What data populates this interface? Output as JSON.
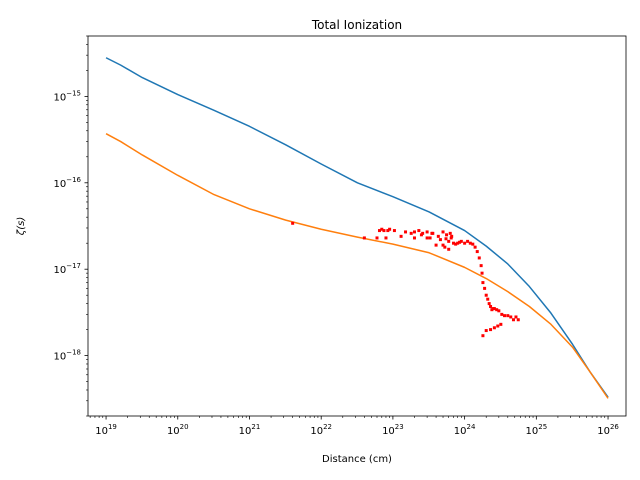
{
  "chart_data": {
    "type": "line",
    "title": "Total Ionization",
    "xlabel": "Distance (cm)",
    "ylabel": "ζ(s)",
    "xscale": "log",
    "yscale": "log",
    "xlim": [
      5.6e+18,
      1.78e+26
    ],
    "ylim": [
      2e-19,
      5e-15
    ],
    "grid": false,
    "legend": "none",
    "xticks": [
      {
        "value": 1e+19,
        "base": "10",
        "exp": "19"
      },
      {
        "value": 1e+20,
        "base": "10",
        "exp": "20"
      },
      {
        "value": 1e+21,
        "base": "10",
        "exp": "21"
      },
      {
        "value": 1e+22,
        "base": "10",
        "exp": "22"
      },
      {
        "value": 1e+23,
        "base": "10",
        "exp": "23"
      },
      {
        "value": 1e+24,
        "base": "10",
        "exp": "24"
      },
      {
        "value": 1e+25,
        "base": "10",
        "exp": "25"
      },
      {
        "value": 1e+26,
        "base": "10",
        "exp": "26"
      }
    ],
    "yticks": [
      {
        "value": 1e-18,
        "base": "10",
        "exp": "−18"
      },
      {
        "value": 1e-17,
        "base": "10",
        "exp": "−17"
      },
      {
        "value": 1e-16,
        "base": "10",
        "exp": "−16"
      },
      {
        "value": 1e-15,
        "base": "10",
        "exp": "−15"
      }
    ],
    "series": [
      {
        "kind": "line",
        "color": "#1f77b4",
        "x": [
          1e+19,
          1.6e+19,
          3.2e+19,
          1e+20,
          3.2e+20,
          1e+21,
          3.2e+21,
          1e+22,
          3.2e+22,
          1e+23,
          3.2e+23,
          1e+24,
          2e+24,
          4e+24,
          8e+24,
          1.6e+25,
          3.2e+25,
          5.6e+25,
          1e+26
        ],
        "y": [
          2.8e-15,
          2.3e-15,
          1.65e-15,
          1.05e-15,
          6.9e-16,
          4.5e-16,
          2.75e-16,
          1.65e-16,
          1e-16,
          6.9e-17,
          4.6e-17,
          2.8e-17,
          1.85e-17,
          1.15e-17,
          6.3e-18,
          3.1e-18,
          1.35e-18,
          6.5e-19,
          3.3e-19
        ]
      },
      {
        "kind": "line",
        "color": "#ff7f0e",
        "x": [
          1e+19,
          1.6e+19,
          3.2e+19,
          1e+20,
          3.2e+20,
          1e+21,
          3.2e+21,
          1e+22,
          3.2e+22,
          1e+23,
          3.2e+23,
          1e+24,
          2e+24,
          4e+24,
          8e+24,
          1.6e+25,
          3.2e+25,
          5.6e+25,
          1e+26
        ],
        "y": [
          3.7e-16,
          3e-16,
          2.1e-16,
          1.22e-16,
          7.3e-17,
          5e-17,
          3.7e-17,
          2.9e-17,
          2.35e-17,
          1.95e-17,
          1.55e-17,
          1.05e-17,
          7.8e-18,
          5.5e-18,
          3.7e-18,
          2.3e-18,
          1.25e-18,
          6.5e-19,
          3.2e-19
        ]
      },
      {
        "kind": "scatter",
        "color": "#ff0000",
        "marker": "small-square",
        "x": [
          4e+21,
          4e+22,
          6e+22,
          6.5e+22,
          7e+22,
          7.5e+22,
          8e+22,
          8.5e+22,
          9e+22,
          1.05e+23,
          1.3e+23,
          1.5e+23,
          1.8e+23,
          2e+23,
          2.3e+23,
          2.6e+23,
          3e+23,
          3.3e+23,
          3.6e+23,
          4e+23,
          4.3e+23,
          4.6e+23,
          5e+23,
          5.3e+23,
          5.6e+23,
          6e+23,
          6.3e+23,
          6.6e+23,
          7e+23,
          7.5e+23,
          8e+23,
          8.5e+23,
          9e+23,
          1e+24,
          1.1e+24,
          1.2e+24,
          1.3e+24,
          1.4e+24,
          1.5e+24,
          1.6e+24,
          1.7e+24,
          1.75e+24,
          1.8e+24,
          1.9e+24,
          2e+24,
          2.1e+24,
          2.2e+24,
          2.3e+24,
          2.4e+24,
          2.5e+24,
          2.6e+24,
          2.8e+24,
          3e+24,
          3.3e+24,
          3.6e+24,
          4e+24,
          4.4e+24,
          4.8e+24,
          5.2e+24,
          5.6e+24,
          1.8e+24,
          2e+24,
          2.3e+24,
          2.6e+24,
          2.9e+24,
          3.2e+24,
          5e+23,
          5.5e+23,
          6e+23,
          6.5e+23,
          2e+23,
          2.5e+23,
          3e+23,
          3.5e+23
        ],
        "y": [
          3.4e-17,
          2.3e-17,
          2.3e-17,
          2.8e-17,
          2.9e-17,
          2.8e-17,
          2.3e-17,
          2.8e-17,
          2.9e-17,
          2.8e-17,
          2.4e-17,
          2.7e-17,
          2.6e-17,
          2.7e-17,
          2.8e-17,
          2.6e-17,
          2.7e-17,
          2.3e-17,
          2.6e-17,
          1.9e-17,
          2.4e-17,
          2.2e-17,
          2.7e-17,
          1.8e-17,
          2.5e-17,
          2.1e-17,
          2.6e-17,
          2.4e-17,
          2e-17,
          1.95e-17,
          2e-17,
          2.05e-17,
          2.1e-17,
          2e-17,
          2.1e-17,
          2e-17,
          1.95e-17,
          1.8e-17,
          1.6e-17,
          1.35e-17,
          1.1e-17,
          9e-18,
          7e-18,
          6e-18,
          5e-18,
          4.5e-18,
          4e-18,
          3.7e-18,
          3.4e-18,
          3.5e-18,
          3.5e-18,
          3.4e-18,
          3.3e-18,
          3e-18,
          2.9e-18,
          2.9e-18,
          2.8e-18,
          2.6e-18,
          2.8e-18,
          2.6e-18,
          1.7e-18,
          1.95e-18,
          2e-18,
          2.1e-18,
          2.2e-18,
          2.3e-18,
          1.9e-17,
          2.25e-17,
          1.7e-17,
          2.3e-17,
          2.3e-17,
          2.5e-17,
          2.3e-17,
          2.6e-17
        ]
      }
    ]
  }
}
